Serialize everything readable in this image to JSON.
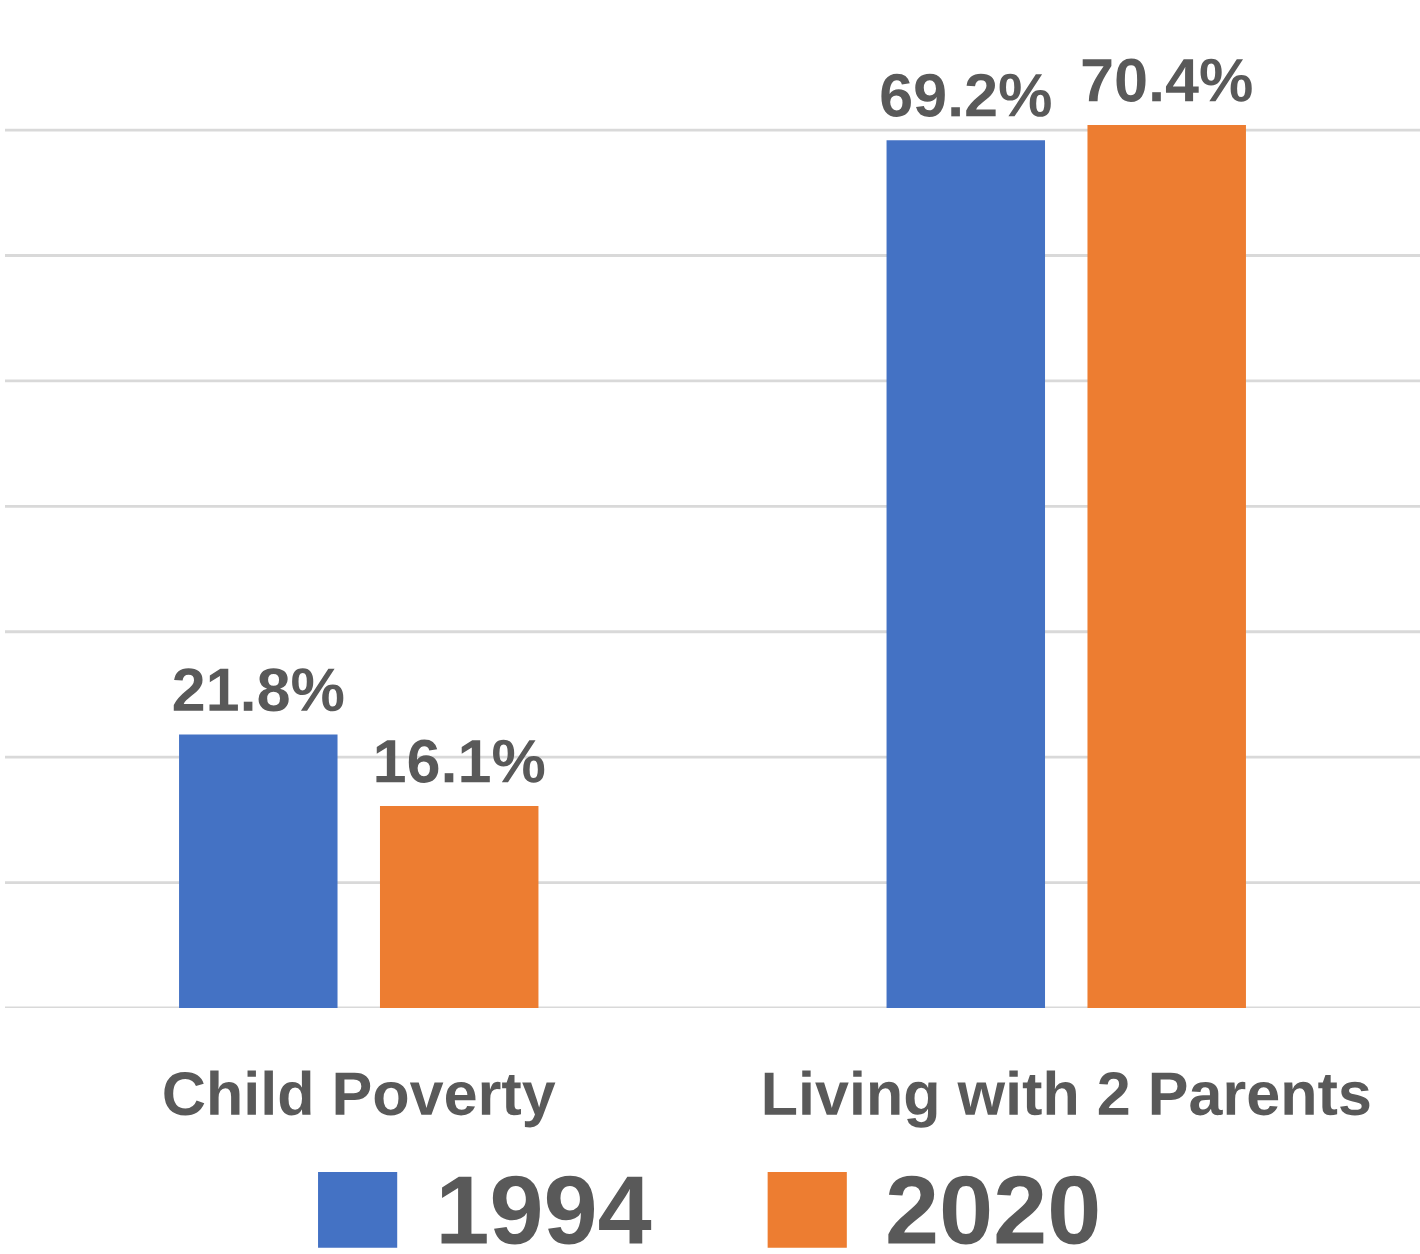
{
  "chart_data": {
    "type": "bar",
    "categories": [
      "Child Poverty",
      "Living with 2 Parents"
    ],
    "series": [
      {
        "name": "1994",
        "color": "#4472c4",
        "values": [
          21.8,
          69.2
        ],
        "value_labels": [
          "21.8%",
          "69.2%"
        ]
      },
      {
        "name": "2020",
        "color": "#ed7d31",
        "values": [
          16.1,
          70.4
        ],
        "value_labels": [
          "16.1%",
          "70.4%"
        ]
      }
    ],
    "yticks": [
      {
        "value": 0,
        "label": null
      },
      {
        "value": 10,
        "label": null
      },
      {
        "value": 20,
        "label": null
      },
      {
        "value": 30,
        "label": null
      },
      {
        "value": 40,
        "label": null
      },
      {
        "value": 50,
        "label": null
      },
      {
        "value": 60,
        "label": null
      },
      {
        "value": 70,
        "label": null
      }
    ],
    "tick_labels": "x",
    "grid": "y",
    "legend": "bottom"
  }
}
